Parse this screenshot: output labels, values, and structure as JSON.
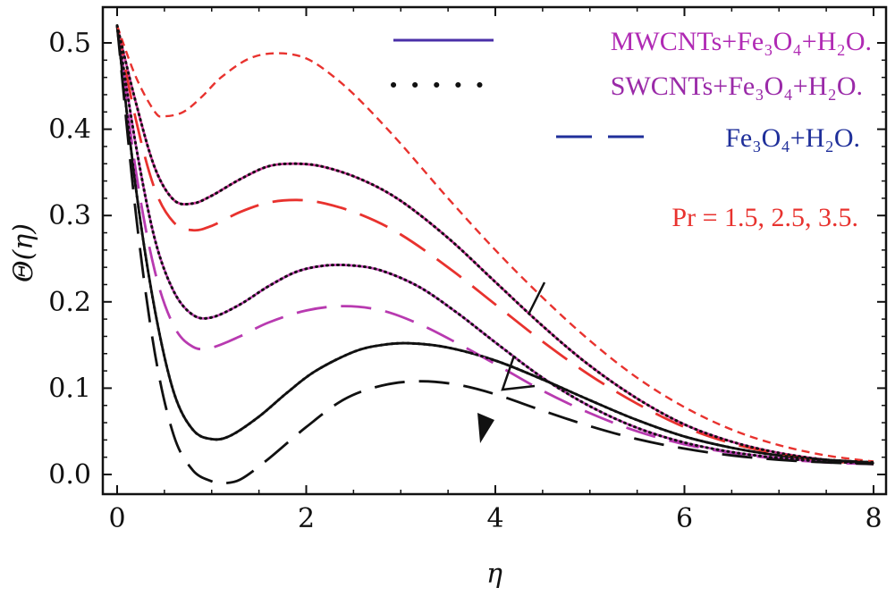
{
  "chart_data": {
    "type": "line",
    "title": "",
    "xlabel": "η",
    "ylabel": "Θ(η)",
    "xlim": [
      0,
      8
    ],
    "ylim": [
      0,
      0.52
    ],
    "xticks": [
      0,
      2,
      4,
      6,
      8
    ],
    "yticks": [
      0.0,
      0.1,
      0.2,
      0.3,
      0.4,
      0.5
    ],
    "xtick_labels": [
      "0",
      "2",
      "4",
      "6",
      "8"
    ],
    "ytick_labels": [
      "0.0",
      "0.1",
      "0.2",
      "0.3",
      "0.4",
      "0.5"
    ],
    "legend": [
      {
        "label": "MWCNTs+Fe₃O₄+H₂O.",
        "style": "solid",
        "color": "#b02ab4"
      },
      {
        "label": "SWCNTs+Fe₃O₄+H₂O.",
        "style": "dotted",
        "color": "#111111",
        "text_color": "#9a2aa8"
      },
      {
        "label": "Fe₃O₄+H₂O.",
        "style": "dashed",
        "color": "#1f2f9a",
        "text_color": "#1f2f9a"
      }
    ],
    "legend_position": "top-right",
    "annotation": {
      "text": "Pr = 1.5, 2.5, 3.5.",
      "color": "#e8322e"
    },
    "series": [
      {
        "name": "Pr=1.5 MWCNTs",
        "style": "solid",
        "color": "#d43aa0",
        "x": [
          0,
          0.2,
          0.4,
          0.6,
          0.8,
          1.0,
          1.3,
          1.6,
          1.9,
          2.2,
          2.6,
          3.0,
          3.5,
          4.0,
          4.5,
          5.0,
          5.5,
          6.0,
          6.5,
          7.0,
          7.5,
          8.0
        ],
        "y": [
          0.52,
          0.43,
          0.355,
          0.318,
          0.314,
          0.323,
          0.342,
          0.357,
          0.36,
          0.356,
          0.341,
          0.317,
          0.274,
          0.223,
          0.172,
          0.126,
          0.088,
          0.058,
          0.038,
          0.025,
          0.017,
          0.013
        ]
      },
      {
        "name": "Pr=1.5 SWCNTs",
        "style": "dotted",
        "color": "#111111",
        "x": [
          0,
          0.2,
          0.4,
          0.6,
          0.8,
          1.0,
          1.3,
          1.6,
          1.9,
          2.2,
          2.6,
          3.0,
          3.5,
          4.0,
          4.5,
          5.0,
          5.5,
          6.0,
          6.5,
          7.0,
          7.5,
          8.0
        ],
        "y": [
          0.52,
          0.43,
          0.355,
          0.318,
          0.314,
          0.323,
          0.342,
          0.357,
          0.36,
          0.356,
          0.341,
          0.317,
          0.274,
          0.223,
          0.172,
          0.126,
          0.088,
          0.058,
          0.038,
          0.025,
          0.017,
          0.013
        ]
      },
      {
        "name": "Pr=1.5 Fe3O4",
        "style": "dashed",
        "color": "#e8322e",
        "x": [
          0,
          0.2,
          0.4,
          0.6,
          0.8,
          1.0,
          1.3,
          1.6,
          1.9,
          2.2,
          2.6,
          3.0,
          3.5,
          4.0,
          4.5,
          5.0,
          5.5,
          6.0,
          6.5,
          7.0,
          7.5,
          8.0
        ],
        "y": [
          0.52,
          0.41,
          0.33,
          0.292,
          0.283,
          0.288,
          0.304,
          0.315,
          0.318,
          0.314,
          0.3,
          0.278,
          0.24,
          0.197,
          0.154,
          0.115,
          0.082,
          0.055,
          0.036,
          0.024,
          0.016,
          0.012
        ]
      },
      {
        "name": "Pr=2.5 MWCNTs",
        "style": "solid",
        "color": "#c845b8",
        "x": [
          0,
          0.2,
          0.4,
          0.6,
          0.8,
          1.0,
          1.3,
          1.6,
          1.9,
          2.2,
          2.5,
          2.8,
          3.2,
          3.6,
          4.0,
          4.5,
          5.0,
          5.5,
          6.0,
          6.5,
          7.0,
          7.5,
          8.0
        ],
        "y": [
          0.52,
          0.38,
          0.272,
          0.212,
          0.185,
          0.182,
          0.197,
          0.218,
          0.235,
          0.242,
          0.242,
          0.236,
          0.217,
          0.187,
          0.153,
          0.112,
          0.079,
          0.054,
          0.037,
          0.026,
          0.019,
          0.015,
          0.013
        ]
      },
      {
        "name": "Pr=2.5 SWCNTs",
        "style": "dotted",
        "color": "#111111",
        "x": [
          0,
          0.2,
          0.4,
          0.6,
          0.8,
          1.0,
          1.3,
          1.6,
          1.9,
          2.2,
          2.5,
          2.8,
          3.2,
          3.6,
          4.0,
          4.5,
          5.0,
          5.5,
          6.0,
          6.5,
          7.0,
          7.5,
          8.0
        ],
        "y": [
          0.52,
          0.38,
          0.272,
          0.212,
          0.185,
          0.182,
          0.197,
          0.218,
          0.235,
          0.242,
          0.242,
          0.236,
          0.217,
          0.187,
          0.153,
          0.112,
          0.079,
          0.054,
          0.037,
          0.026,
          0.019,
          0.015,
          0.013
        ]
      },
      {
        "name": "Pr=2.5 Fe3O4",
        "style": "dashed",
        "color": "#b83ab0",
        "x": [
          0,
          0.2,
          0.4,
          0.6,
          0.8,
          1.0,
          1.3,
          1.6,
          2.0,
          2.4,
          2.8,
          3.2,
          3.6,
          4.0,
          4.5,
          5.0,
          5.5,
          6.0,
          6.5,
          7.0,
          7.5,
          8.0
        ],
        "y": [
          0.52,
          0.35,
          0.235,
          0.172,
          0.148,
          0.147,
          0.16,
          0.176,
          0.19,
          0.195,
          0.19,
          0.174,
          0.152,
          0.128,
          0.097,
          0.071,
          0.05,
          0.035,
          0.025,
          0.018,
          0.014,
          0.012
        ]
      },
      {
        "name": "Pr=3.5 MWCNTs",
        "style": "solid",
        "color": "#111111",
        "x": [
          0,
          0.2,
          0.4,
          0.6,
          0.8,
          1.0,
          1.2,
          1.5,
          1.8,
          2.1,
          2.5,
          2.8,
          3.1,
          3.5,
          4.0,
          4.5,
          5.0,
          5.5,
          6.0,
          6.5,
          7.0,
          7.5,
          8.0
        ],
        "y": [
          0.52,
          0.33,
          0.19,
          0.095,
          0.052,
          0.041,
          0.045,
          0.067,
          0.095,
          0.12,
          0.142,
          0.15,
          0.152,
          0.147,
          0.132,
          0.11,
          0.086,
          0.063,
          0.044,
          0.031,
          0.022,
          0.017,
          0.014
        ]
      },
      {
        "name": "Pr=3.5 SWCNTs",
        "style": "dotted",
        "color": "#111111",
        "x": [
          0,
          0.2,
          0.4,
          0.6,
          0.8,
          1.0,
          1.2,
          1.5,
          1.8,
          2.1,
          2.5,
          2.8,
          3.1,
          3.5,
          4.0,
          4.5,
          5.0,
          5.5,
          6.0,
          6.5,
          7.0,
          7.5,
          8.0
        ],
        "y": [
          0.52,
          0.33,
          0.19,
          0.095,
          0.052,
          0.041,
          0.045,
          0.067,
          0.095,
          0.12,
          0.142,
          0.15,
          0.152,
          0.147,
          0.132,
          0.11,
          0.086,
          0.063,
          0.044,
          0.031,
          0.022,
          0.017,
          0.014
        ]
      },
      {
        "name": "Pr=3.5 Fe3O4",
        "style": "dashed",
        "color": "#111111",
        "x": [
          0,
          0.2,
          0.4,
          0.6,
          0.8,
          1.0,
          1.1,
          1.3,
          1.6,
          2.0,
          2.4,
          2.8,
          3.2,
          3.6,
          4.0,
          4.5,
          5.0,
          5.5,
          6.0,
          6.5,
          7.0,
          7.5,
          8.0
        ],
        "y": [
          0.52,
          0.3,
          0.14,
          0.045,
          0.005,
          -0.008,
          -0.01,
          -0.006,
          0.018,
          0.055,
          0.087,
          0.103,
          0.108,
          0.104,
          0.093,
          0.074,
          0.056,
          0.041,
          0.03,
          0.022,
          0.017,
          0.014,
          0.012
        ]
      },
      {
        "name": "Pr=1.5 base (short dash)",
        "style": "shortdash",
        "color": "#e8322e",
        "x": [
          0,
          0.2,
          0.4,
          0.5,
          0.7,
          0.9,
          1.1,
          1.4,
          1.7,
          2.0,
          2.3,
          2.6,
          3.0,
          3.5,
          4.0,
          4.5,
          5.0,
          5.5,
          6.0,
          6.5,
          7.0,
          7.5,
          8.0
        ],
        "y": [
          0.52,
          0.46,
          0.42,
          0.415,
          0.42,
          0.438,
          0.46,
          0.482,
          0.488,
          0.482,
          0.46,
          0.43,
          0.383,
          0.32,
          0.26,
          0.205,
          0.155,
          0.112,
          0.078,
          0.052,
          0.034,
          0.022,
          0.015
        ]
      }
    ]
  }
}
